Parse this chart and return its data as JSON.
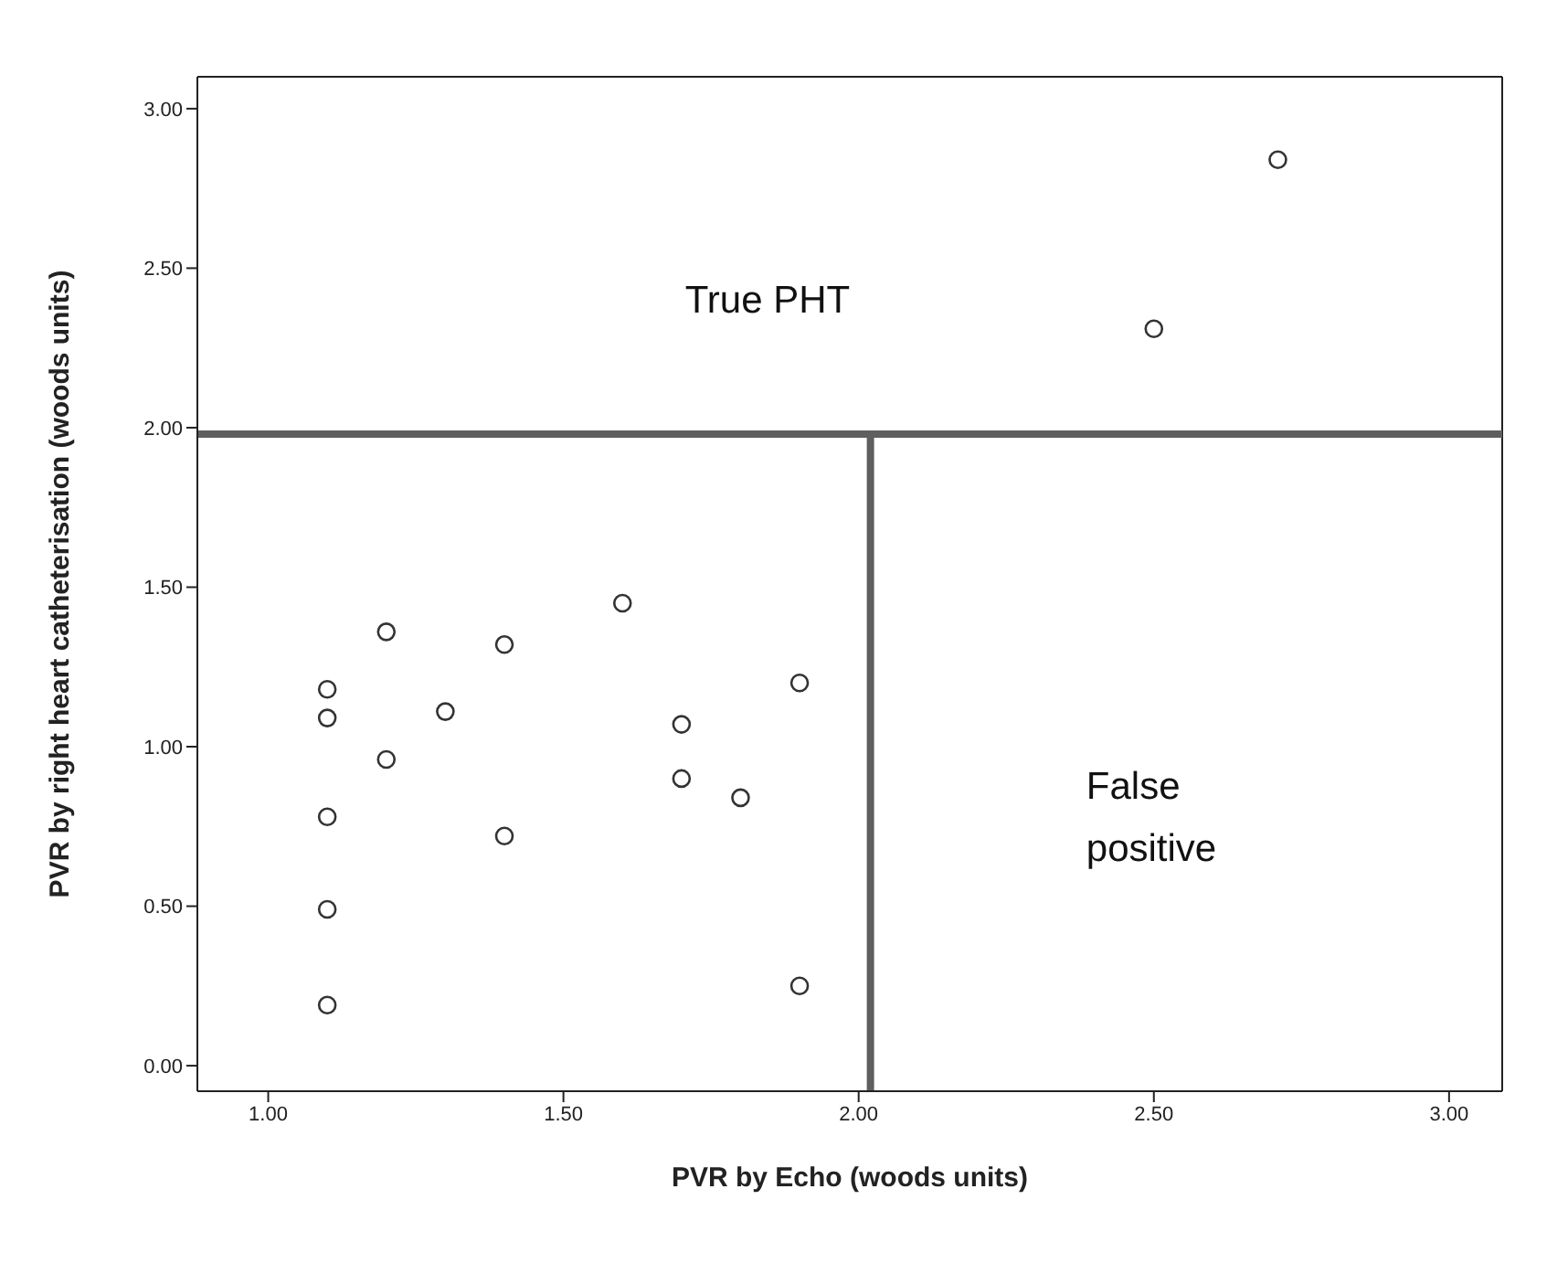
{
  "chart_data": {
    "type": "scatter",
    "xlabel": "PVR by Echo (woods units)",
    "ylabel": "PVR by right heart catheterisation (woods units)",
    "x": [
      1.1,
      1.1,
      1.1,
      1.1,
      1.1,
      1.2,
      1.2,
      1.3,
      1.4,
      1.4,
      1.6,
      1.7,
      1.7,
      1.8,
      1.9,
      1.9,
      2.5,
      2.71
    ],
    "values": [
      1.18,
      1.09,
      0.78,
      0.49,
      0.19,
      1.36,
      0.96,
      1.11,
      1.32,
      0.72,
      1.45,
      1.07,
      0.9,
      0.84,
      1.2,
      0.25,
      2.31,
      2.84
    ],
    "color": "#333333",
    "marker": "circle",
    "xlim": [
      0.88,
      3.09
    ],
    "ylim": [
      -0.08,
      3.1
    ],
    "xticks": [
      {
        "value": 1,
        "label": "1.00"
      },
      {
        "value": 1.5,
        "label": "1.50"
      },
      {
        "value": 2,
        "label": "2.00"
      },
      {
        "value": 2.5,
        "label": "2.50"
      },
      {
        "value": 3,
        "label": "3.00"
      }
    ],
    "yticks": [
      {
        "value": 0,
        "label": "0.00"
      },
      {
        "value": 0.5,
        "label": "0.50"
      },
      {
        "value": 1,
        "label": "1.00"
      },
      {
        "value": 1.5,
        "label": "1.50"
      },
      {
        "value": 2,
        "label": "2.00"
      },
      {
        "value": 2.5,
        "label": "2.50"
      },
      {
        "value": 3,
        "label": "3.00"
      }
    ],
    "ref_lines": [
      {
        "axis": "y",
        "value": 1.98,
        "color": "#5f5f5f"
      },
      {
        "axis": "x",
        "value": 2.02,
        "color": "#5f5f5f"
      }
    ],
    "annotations": [
      "True PHT",
      "False\npositive"
    ],
    "grid": false,
    "legend": false
  }
}
